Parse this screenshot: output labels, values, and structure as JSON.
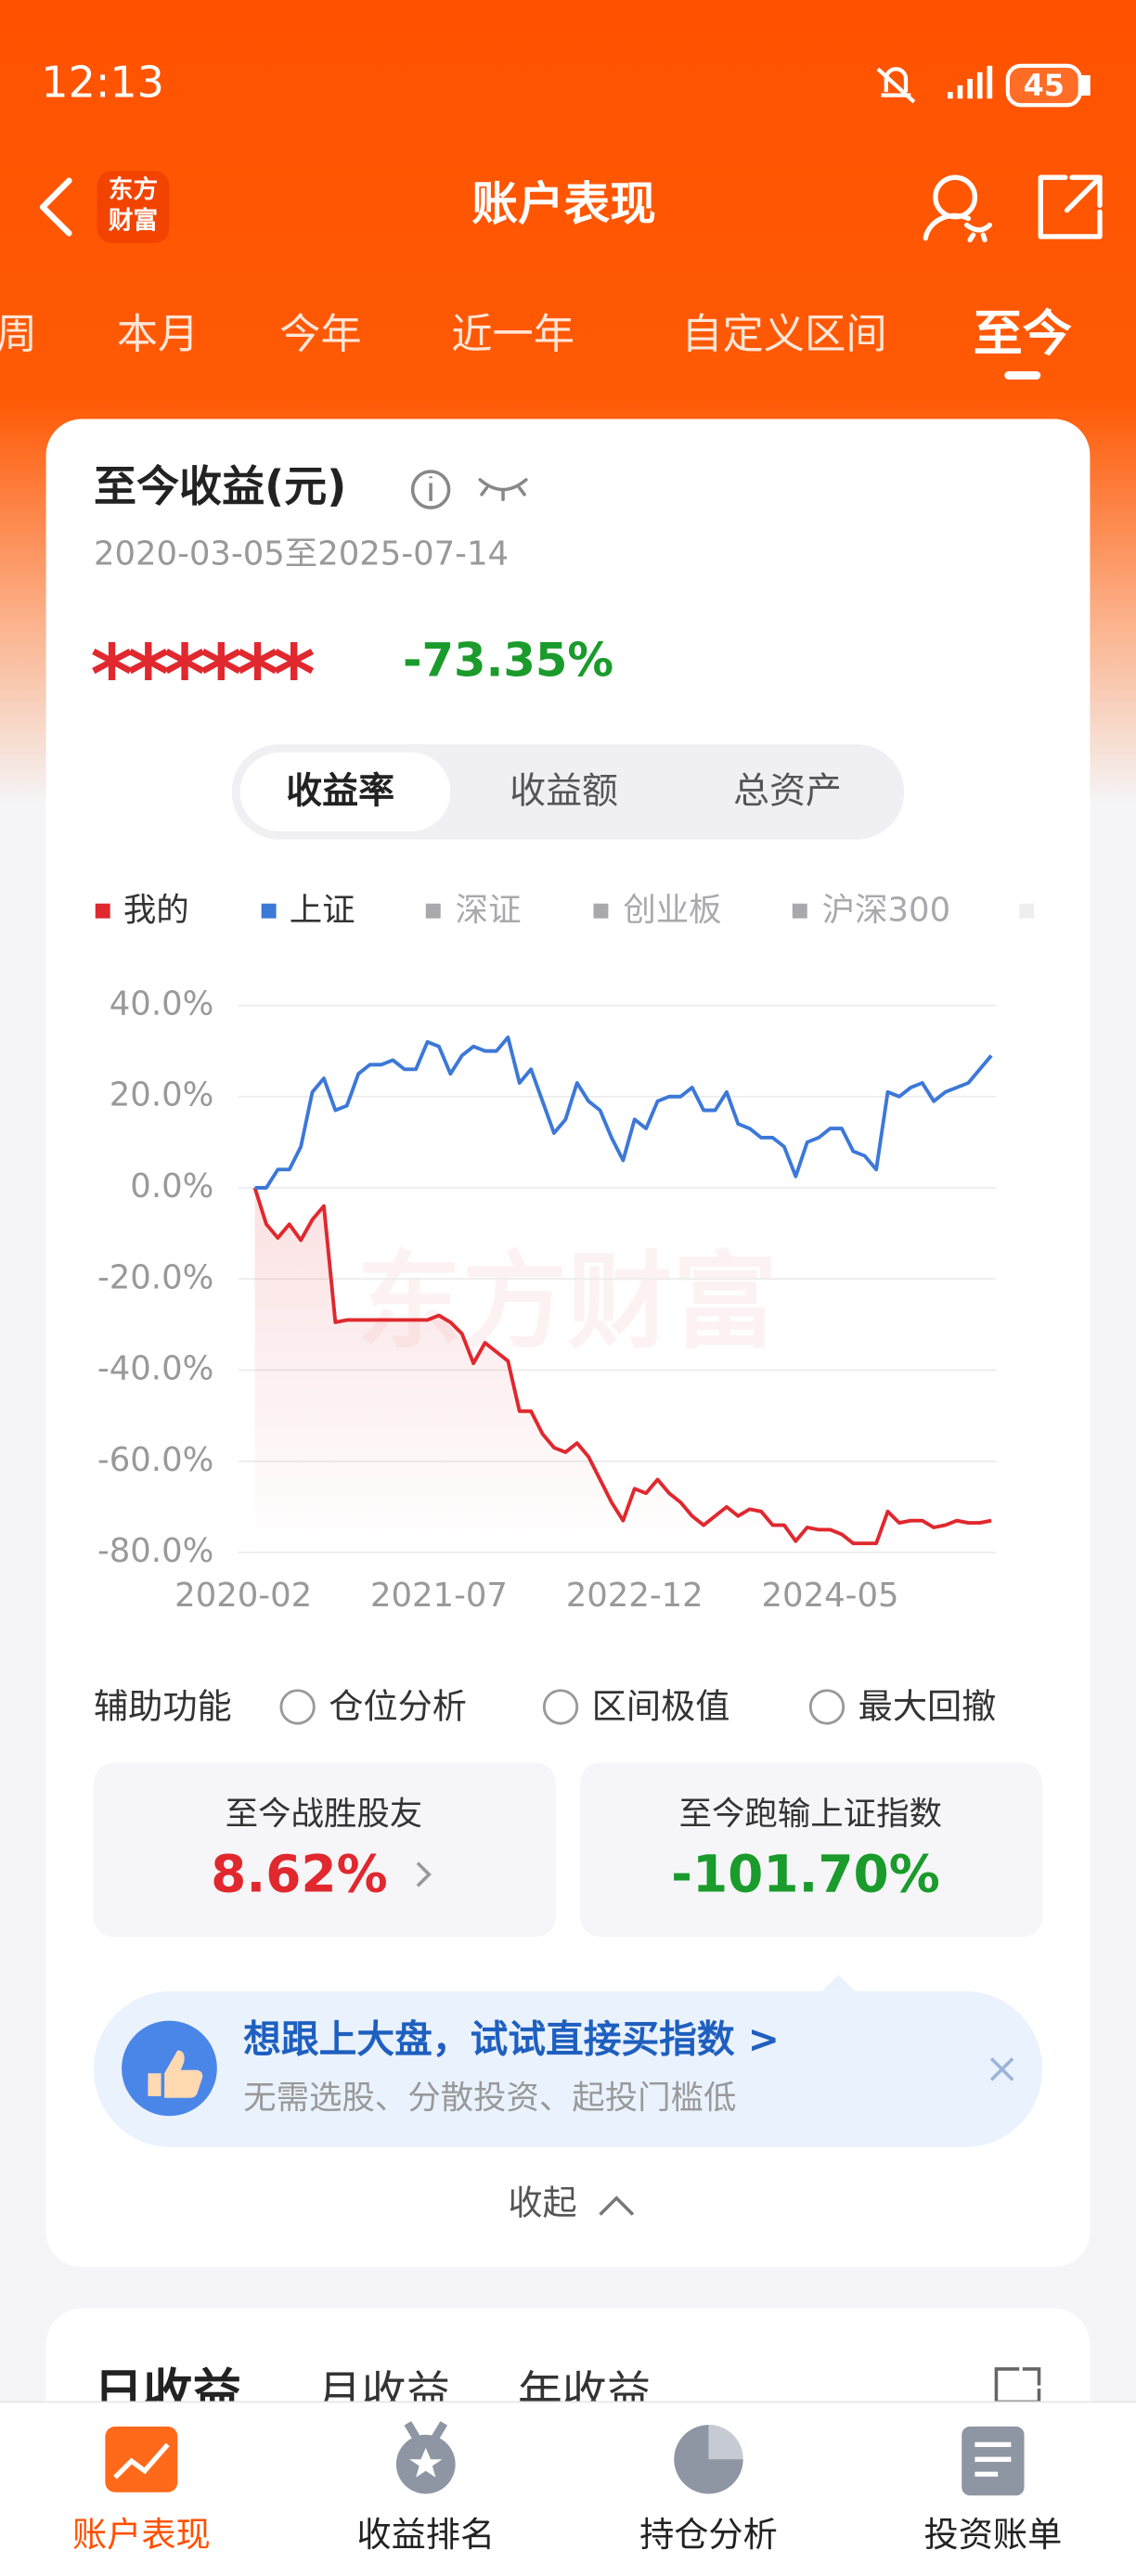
{
  "status_bar": {
    "time": "12:13",
    "battery": "45"
  },
  "header": {
    "logo_lines": [
      "东方",
      "财富"
    ],
    "title": "账户表现"
  },
  "tabs": {
    "items": [
      "周",
      "本月",
      "今年",
      "近一年",
      "自定义区间",
      "至今"
    ],
    "active": 5
  },
  "summary": {
    "title": "至今收益(元)",
    "date_range": "2020-03-05至2025-07-14",
    "masked_amount": "******",
    "return": "-73.35%"
  },
  "segments": {
    "items": [
      "收益率",
      "收益额",
      "总资产"
    ],
    "active": 0
  },
  "chart_data": {
    "type": "line",
    "watermark": "东方财富",
    "x": [
      "2020-03",
      "2020-04",
      "2020-05",
      "2020-06",
      "2020-07",
      "2020-08",
      "2020-09",
      "2020-10",
      "2020-11",
      "2020-12",
      "2021-01",
      "2021-02",
      "2021-03",
      "2021-04",
      "2021-05",
      "2021-06",
      "2021-07",
      "2021-08",
      "2021-09",
      "2021-10",
      "2021-11",
      "2021-12",
      "2022-01",
      "2022-02",
      "2022-03",
      "2022-04",
      "2022-05",
      "2022-06",
      "2022-07",
      "2022-08",
      "2022-09",
      "2022-10",
      "2022-11",
      "2022-12",
      "2023-01",
      "2023-02",
      "2023-03",
      "2023-04",
      "2023-05",
      "2023-06",
      "2023-07",
      "2023-08",
      "2023-09",
      "2023-10",
      "2023-11",
      "2023-12",
      "2024-01",
      "2024-02",
      "2024-03",
      "2024-04",
      "2024-05",
      "2024-06",
      "2024-07",
      "2024-08",
      "2024-09",
      "2024-10",
      "2024-11",
      "2024-12",
      "2025-01",
      "2025-02",
      "2025-03",
      "2025-04",
      "2025-05",
      "2025-06",
      "2025-07"
    ],
    "series": [
      {
        "name": "我的",
        "color": "#e0282e",
        "values": [
          0,
          -8,
          -11,
          -8,
          -11.5,
          -7,
          -4,
          -29.5,
          -29,
          -29,
          -29,
          -29,
          -29,
          -29,
          -29,
          -29,
          -28,
          -29.5,
          -32,
          -38.5,
          -34,
          -36,
          -38,
          -49,
          -49,
          -54,
          -57,
          -58,
          -56,
          -59,
          -64,
          -69,
          -73,
          -66,
          -67,
          -64,
          -67,
          -69,
          -72,
          -74,
          -72,
          -70,
          -72,
          -70.5,
          -71,
          -74,
          -74,
          -77.5,
          -74.5,
          -75,
          -75,
          -76,
          -78,
          -78,
          -78,
          -71,
          -73.5,
          -73,
          -73,
          -74.5,
          -74,
          -73,
          -73.5,
          -73.5,
          -73
        ]
      },
      {
        "name": "上证",
        "color": "#3c78d8",
        "values": [
          0,
          0,
          4,
          4,
          9,
          21,
          24,
          17,
          18,
          25,
          27,
          27,
          28,
          26,
          26,
          32,
          31,
          25,
          29,
          31,
          30,
          30,
          33,
          23,
          26,
          19,
          12,
          15,
          23,
          19,
          17,
          11,
          6,
          15,
          13,
          19,
          20,
          20,
          22,
          17,
          17,
          21,
          14,
          13,
          11,
          11,
          9,
          2.5,
          10,
          11,
          13,
          13,
          8,
          7,
          4,
          21,
          20,
          22,
          23,
          19,
          21,
          22,
          23,
          26,
          29
        ]
      }
    ],
    "legend_inactive": {
      "names": [
        "深证",
        "创业板",
        "沪深300"
      ],
      "color": "#a9a9ad"
    },
    "xlim": [
      "2020-02",
      "2025-07"
    ],
    "xticks": [
      "2020-02",
      "2021-07",
      "2022-12",
      "2024-05"
    ],
    "ylim": [
      -80,
      40
    ],
    "yticks": [
      {
        "value": 40,
        "label": "40.0%"
      },
      {
        "value": 20,
        "label": "20.0%"
      },
      {
        "value": 0,
        "label": "0.0%"
      },
      {
        "value": -20,
        "label": "-20.0%"
      },
      {
        "value": -40,
        "label": "-40.0%"
      },
      {
        "value": -60,
        "label": "-60.0%"
      },
      {
        "value": -80,
        "label": "-80.0%"
      }
    ],
    "grid": true
  },
  "assist": {
    "label": "辅助功能",
    "options": [
      "仓位分析",
      "区间极值",
      "最大回撤"
    ]
  },
  "stats": [
    {
      "label": "至今战胜股友",
      "value": "8.62%"
    },
    {
      "label": "至今跑输上证指数",
      "value": "-101.70%"
    }
  ],
  "promo": {
    "title": "想跟上大盘，试试直接买指数 >",
    "subtitle": "无需选股、分散投资、起投门槛低"
  },
  "collapse": "收起",
  "period_tabs": [
    "日收益",
    "月收益",
    "年收益"
  ],
  "nav": {
    "items": [
      "账户表现",
      "收益排名",
      "持仓分析",
      "投资账单"
    ],
    "active": 0
  }
}
